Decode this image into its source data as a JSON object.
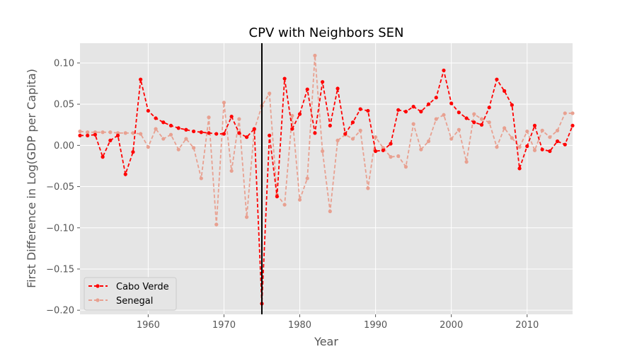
{
  "chart_data": {
    "type": "line",
    "title": "CPV with Neighbors SEN",
    "xlabel": "Year",
    "ylabel": "First Difference in Log(GDP per Capita)",
    "xlim": [
      1951,
      2016
    ],
    "ylim": [
      -0.205,
      0.124
    ],
    "xticks": [
      1960,
      1970,
      1980,
      1990,
      2000,
      2010
    ],
    "yticks": [
      -0.2,
      -0.15,
      -0.1,
      -0.05,
      0.0,
      0.05,
      0.1
    ],
    "ytick_labels": [
      "−0.20",
      "−0.15",
      "−0.10",
      "−0.05",
      "0.00",
      "0.05",
      "0.10"
    ],
    "grid": true,
    "legend_position": "lower-left",
    "vertical_line": {
      "x": 1975,
      "color": "#000000"
    },
    "x": [
      1951,
      1952,
      1953,
      1954,
      1955,
      1956,
      1957,
      1958,
      1959,
      1960,
      1961,
      1962,
      1963,
      1964,
      1965,
      1966,
      1967,
      1968,
      1969,
      1970,
      1971,
      1972,
      1973,
      1974,
      1975,
      1976,
      1977,
      1978,
      1979,
      1980,
      1981,
      1982,
      1983,
      1984,
      1985,
      1986,
      1987,
      1988,
      1989,
      1990,
      1991,
      1992,
      1993,
      1994,
      1995,
      1996,
      1997,
      1998,
      1999,
      2000,
      2001,
      2002,
      2003,
      2004,
      2005,
      2006,
      2007,
      2008,
      2009,
      2010,
      2011,
      2012,
      2013,
      2014,
      2015,
      2016
    ],
    "series": [
      {
        "name": "Cabo Verde",
        "color": "#ff0000",
        "style": "dashed",
        "values": [
          0.012,
          0.012,
          0.013,
          -0.014,
          0.006,
          0.012,
          -0.035,
          -0.008,
          0.08,
          0.042,
          0.033,
          0.028,
          0.024,
          0.021,
          0.019,
          0.017,
          0.016,
          0.015,
          0.014,
          0.014,
          0.035,
          0.015,
          0.01,
          0.02,
          -0.192,
          0.012,
          -0.062,
          0.081,
          0.02,
          0.038,
          0.068,
          0.015,
          0.077,
          0.024,
          0.069,
          0.014,
          0.028,
          0.044,
          0.042,
          -0.007,
          -0.006,
          0.002,
          0.043,
          0.041,
          0.047,
          0.041,
          0.05,
          0.058,
          0.091,
          0.051,
          0.04,
          0.033,
          0.028,
          0.025,
          0.046,
          0.08,
          0.066,
          0.049,
          -0.028,
          -0.001,
          0.024,
          -0.005,
          -0.007,
          0.005,
          0.001,
          0.024
        ]
      },
      {
        "name": "Senegal",
        "color": "#e8a090",
        "style": "dashed",
        "values": [
          0.017,
          0.016,
          0.016,
          0.016,
          0.016,
          0.015,
          0.015,
          0.015,
          0.014,
          -0.002,
          0.02,
          0.008,
          0.013,
          -0.005,
          0.008,
          -0.003,
          -0.04,
          0.034,
          -0.096,
          0.052,
          -0.031,
          0.032,
          -0.087,
          0.019,
          0.048,
          0.063,
          -0.06,
          -0.072,
          0.036,
          -0.066,
          -0.04,
          0.109,
          -0.007,
          -0.08,
          0.006,
          0.013,
          0.008,
          0.018,
          -0.052,
          0.01,
          -0.003,
          -0.014,
          -0.013,
          -0.026,
          0.026,
          -0.005,
          0.005,
          0.032,
          0.037,
          0.008,
          0.019,
          -0.02,
          0.038,
          0.032,
          0.028,
          -0.002,
          0.021,
          0.009,
          -0.002,
          0.017,
          -0.006,
          0.018,
          0.01,
          0.018,
          0.039,
          0.039
        ]
      }
    ]
  }
}
